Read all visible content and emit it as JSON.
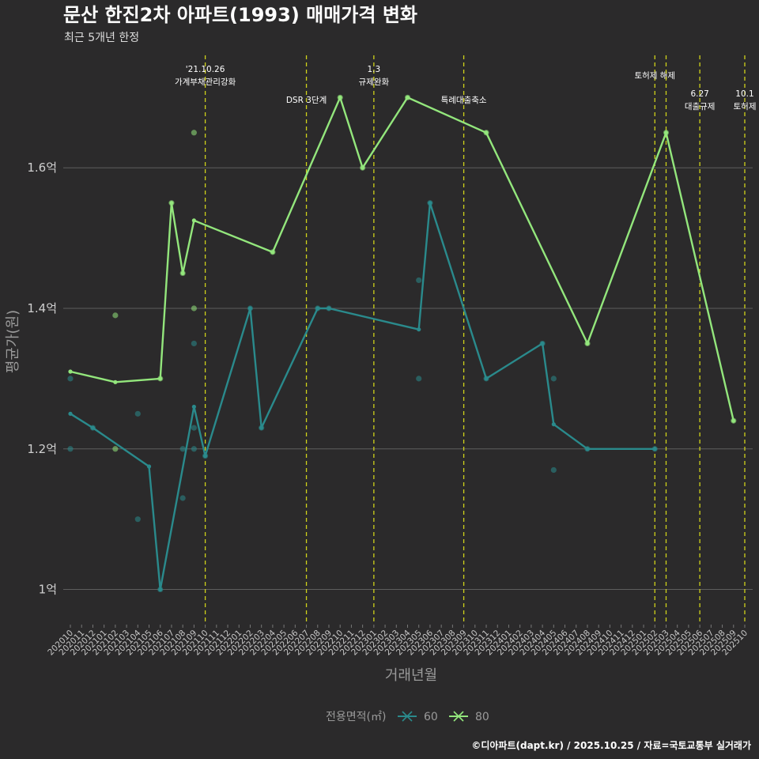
{
  "colors": {
    "background": "#2b2a2b",
    "grid": "#5e5e5e",
    "event_line": "#cfd21a",
    "series_60": "#2a8a8c",
    "series_80": "#93e67c"
  },
  "chart_data": {
    "type": "line",
    "title": "문산 한진2차 아파트(1993) 매매가격 변화",
    "subtitle": "최근 5개년 한정",
    "xlabel": "거래년월",
    "ylabel": "평균가(원)",
    "ylim": [
      0.95,
      1.76
    ],
    "yticks": [
      {
        "value": 1.0,
        "label": "1억"
      },
      {
        "value": 1.2,
        "label": "1.2억"
      },
      {
        "value": 1.4,
        "label": "1.4억"
      },
      {
        "value": 1.6,
        "label": "1.6억"
      }
    ],
    "x_categories": [
      "202010",
      "202011",
      "202012",
      "202101",
      "202102",
      "202103",
      "202104",
      "202105",
      "202106",
      "202107",
      "202108",
      "202109",
      "202110",
      "202111",
      "202112",
      "202201",
      "202202",
      "202203",
      "202204",
      "202205",
      "202206",
      "202207",
      "202208",
      "202209",
      "202210",
      "202211",
      "202212",
      "202301",
      "202302",
      "202303",
      "202304",
      "202305",
      "202306",
      "202307",
      "202308",
      "202309",
      "202310",
      "202311",
      "202312",
      "202401",
      "202402",
      "202403",
      "202404",
      "202405",
      "202406",
      "202407",
      "202408",
      "202409",
      "202410",
      "202411",
      "202412",
      "202501",
      "202502",
      "202503",
      "202504",
      "202505",
      "202506",
      "202507",
      "202508",
      "202509",
      "202510"
    ],
    "series": [
      {
        "name": "60",
        "line": [
          {
            "x": "202010",
            "y": 1.25
          },
          {
            "x": "202012",
            "y": 1.23
          },
          {
            "x": "202105",
            "y": 1.175
          },
          {
            "x": "202106",
            "y": 1.0
          },
          {
            "x": "202109",
            "y": 1.26
          },
          {
            "x": "202110",
            "y": 1.19
          },
          {
            "x": "202202",
            "y": 1.4
          },
          {
            "x": "202203",
            "y": 1.23
          },
          {
            "x": "202208",
            "y": 1.4
          },
          {
            "x": "202209",
            "y": 1.4
          },
          {
            "x": "202305",
            "y": 1.37
          },
          {
            "x": "202306",
            "y": 1.55
          },
          {
            "x": "202311",
            "y": 1.3
          },
          {
            "x": "202404",
            "y": 1.35
          },
          {
            "x": "202405",
            "y": 1.235
          },
          {
            "x": "202408",
            "y": 1.2
          },
          {
            "x": "202502",
            "y": 1.2
          }
        ],
        "points": [
          {
            "x": "202010",
            "y": 1.3
          },
          {
            "x": "202010",
            "y": 1.2
          },
          {
            "x": "202012",
            "y": 1.23
          },
          {
            "x": "202104",
            "y": 1.25
          },
          {
            "x": "202104",
            "y": 1.1
          },
          {
            "x": "202106",
            "y": 1.0
          },
          {
            "x": "202108",
            "y": 1.2
          },
          {
            "x": "202108",
            "y": 1.13
          },
          {
            "x": "202109",
            "y": 1.2
          },
          {
            "x": "202109",
            "y": 1.23
          },
          {
            "x": "202109",
            "y": 1.35
          },
          {
            "x": "202110",
            "y": 1.19
          },
          {
            "x": "202202",
            "y": 1.4
          },
          {
            "x": "202203",
            "y": 1.23
          },
          {
            "x": "202208",
            "y": 1.4
          },
          {
            "x": "202209",
            "y": 1.4
          },
          {
            "x": "202305",
            "y": 1.44
          },
          {
            "x": "202305",
            "y": 1.3
          },
          {
            "x": "202306",
            "y": 1.55
          },
          {
            "x": "202311",
            "y": 1.3
          },
          {
            "x": "202404",
            "y": 1.35
          },
          {
            "x": "202405",
            "y": 1.3
          },
          {
            "x": "202405",
            "y": 1.17
          },
          {
            "x": "202408",
            "y": 1.2
          },
          {
            "x": "202502",
            "y": 1.2
          }
        ]
      },
      {
        "name": "80",
        "line": [
          {
            "x": "202010",
            "y": 1.31
          },
          {
            "x": "202102",
            "y": 1.295
          },
          {
            "x": "202106",
            "y": 1.3
          },
          {
            "x": "202107",
            "y": 1.55
          },
          {
            "x": "202108",
            "y": 1.45
          },
          {
            "x": "202109",
            "y": 1.525
          },
          {
            "x": "202204",
            "y": 1.48
          },
          {
            "x": "202210",
            "y": 1.7
          },
          {
            "x": "202212",
            "y": 1.6
          },
          {
            "x": "202304",
            "y": 1.7
          },
          {
            "x": "202311",
            "y": 1.65
          },
          {
            "x": "202408",
            "y": 1.35
          },
          {
            "x": "202503",
            "y": 1.65
          },
          {
            "x": "202509",
            "y": 1.24
          }
        ],
        "points": [
          {
            "x": "202102",
            "y": 1.39
          },
          {
            "x": "202102",
            "y": 1.2
          },
          {
            "x": "202106",
            "y": 1.3
          },
          {
            "x": "202107",
            "y": 1.55
          },
          {
            "x": "202108",
            "y": 1.45
          },
          {
            "x": "202109",
            "y": 1.65
          },
          {
            "x": "202109",
            "y": 1.4
          },
          {
            "x": "202204",
            "y": 1.48
          },
          {
            "x": "202210",
            "y": 1.7
          },
          {
            "x": "202212",
            "y": 1.6
          },
          {
            "x": "202304",
            "y": 1.7
          },
          {
            "x": "202311",
            "y": 1.65
          },
          {
            "x": "202408",
            "y": 1.35
          },
          {
            "x": "202503",
            "y": 1.65
          },
          {
            "x": "202509",
            "y": 1.24
          }
        ]
      }
    ],
    "events": [
      {
        "x": "202110",
        "lines": [
          "'21.10.26",
          "가계부채관리강화"
        ],
        "tier": 0
      },
      {
        "x": "202207",
        "lines": [
          "DSR 3단계"
        ],
        "tier": 2
      },
      {
        "x": "202301",
        "lines": [
          "1.3",
          "규제완화"
        ],
        "tier": 0
      },
      {
        "x": "202309",
        "lines": [
          "특례대출축소"
        ],
        "tier": 2
      },
      {
        "x": "202502",
        "lines": [
          "토허제 해제"
        ],
        "tier": 1
      },
      {
        "x": "202503",
        "lines": [],
        "tier": 1
      },
      {
        "x": "202506",
        "lines": [
          "6.27",
          "대출규제"
        ],
        "tier": 3
      },
      {
        "x": "202510",
        "lines": [
          "10.1",
          "토허제"
        ],
        "tier": 3
      }
    ],
    "legend": {
      "title": "전용면적(㎡)",
      "items": [
        "60",
        "80"
      ],
      "position": "bottom"
    }
  },
  "caption": "©디아파트(dapt.kr) / 2025.10.25 / 자료=국토교통부 실거래가"
}
